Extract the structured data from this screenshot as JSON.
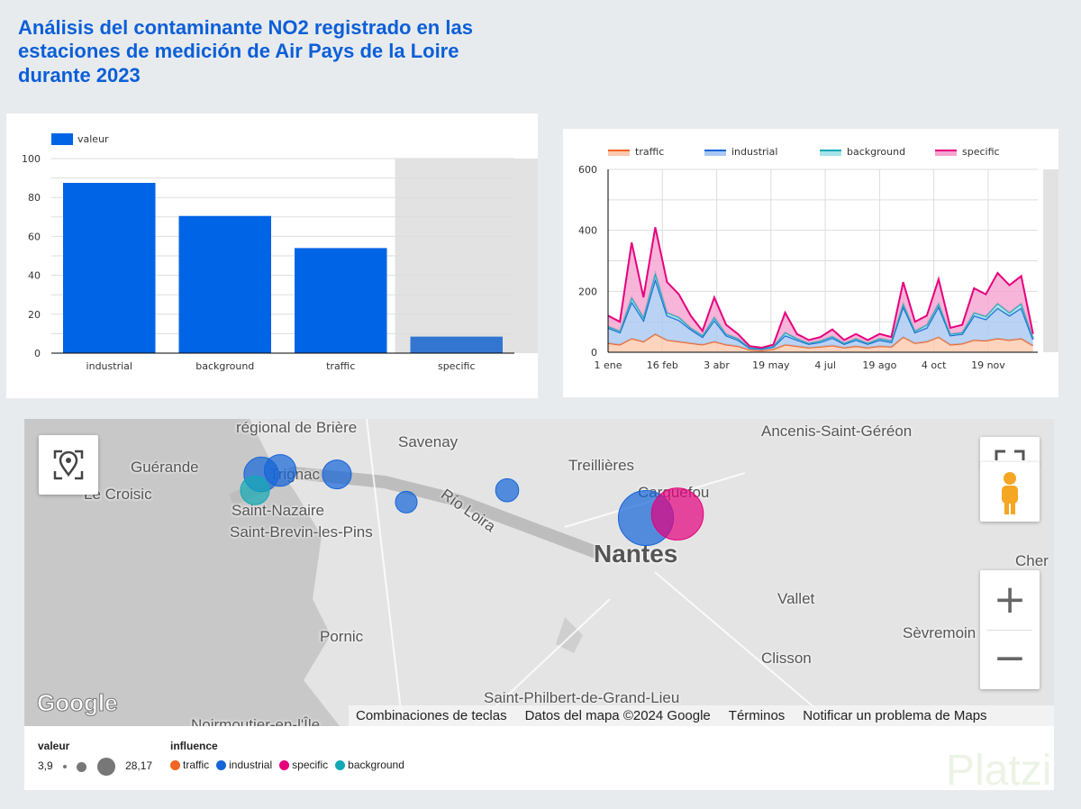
{
  "title": "Análisis del contaminante NO2 registrado en las estaciones de medición de Air Pays de la Loire durante 2023",
  "colors": {
    "bar": "#0064e6",
    "bar_highlight": "#3276d2",
    "traffic": "#f26522",
    "industrial": "#1565d8",
    "background": "#12a9b5",
    "specific": "#e6007e"
  },
  "chart_data": [
    {
      "type": "bar",
      "legend": [
        "valeur"
      ],
      "categories": [
        "industrial",
        "background",
        "traffic",
        "specific"
      ],
      "values": [
        87.5,
        70.5,
        54,
        8.5
      ],
      "ylim": [
        0,
        100
      ],
      "yticks": [
        "0",
        "20",
        "40",
        "60",
        "80",
        "100"
      ],
      "grid": true,
      "legend_placement": "top-left",
      "highlighted_category": "specific"
    },
    {
      "type": "area",
      "stacked": true,
      "legend_placement": "top",
      "grid": true,
      "ylim": [
        0,
        600
      ],
      "yticks": [
        "0",
        "200",
        "400",
        "600"
      ],
      "xticks": [
        {
          "date": "2023-01-01",
          "label": "1 ene"
        },
        {
          "date": "2023-02-16",
          "label": "16 feb"
        },
        {
          "date": "2023-04-03",
          "label": "3 abr"
        },
        {
          "date": "2023-05-19",
          "label": "19 may"
        },
        {
          "date": "2023-07-04",
          "label": "4 jul"
        },
        {
          "date": "2023-08-19",
          "label": "19 ago"
        },
        {
          "date": "2023-10-04",
          "label": "4 oct"
        },
        {
          "date": "2023-11-19",
          "label": "19 nov"
        }
      ],
      "x": [
        "2023-01-01",
        "2023-01-11",
        "2023-01-21",
        "2023-01-31",
        "2023-02-10",
        "2023-02-20",
        "2023-03-02",
        "2023-03-12",
        "2023-03-22",
        "2023-04-01",
        "2023-04-11",
        "2023-04-21",
        "2023-05-01",
        "2023-05-11",
        "2023-05-21",
        "2023-05-31",
        "2023-06-10",
        "2023-06-20",
        "2023-06-30",
        "2023-07-10",
        "2023-07-20",
        "2023-07-30",
        "2023-08-09",
        "2023-08-19",
        "2023-08-29",
        "2023-09-08",
        "2023-09-18",
        "2023-09-28",
        "2023-10-08",
        "2023-10-18",
        "2023-10-28",
        "2023-11-07",
        "2023-11-17",
        "2023-11-27",
        "2023-12-07",
        "2023-12-17",
        "2023-12-27"
      ],
      "series": [
        {
          "name": "traffic",
          "values": [
            30,
            25,
            45,
            35,
            60,
            40,
            35,
            30,
            25,
            35,
            25,
            20,
            8,
            6,
            10,
            25,
            20,
            15,
            18,
            22,
            15,
            20,
            15,
            20,
            18,
            50,
            30,
            35,
            50,
            25,
            28,
            40,
            38,
            45,
            40,
            45,
            22
          ]
        },
        {
          "name": "industrial",
          "values": [
            50,
            40,
            120,
            70,
            180,
            80,
            70,
            45,
            25,
            70,
            30,
            20,
            6,
            5,
            8,
            30,
            20,
            12,
            15,
            25,
            12,
            20,
            12,
            20,
            15,
            100,
            35,
            45,
            100,
            30,
            32,
            80,
            70,
            100,
            80,
            100,
            20
          ]
        },
        {
          "name": "background",
          "values": [
            5,
            5,
            15,
            10,
            20,
            10,
            10,
            5,
            5,
            10,
            5,
            5,
            2,
            2,
            2,
            10,
            5,
            3,
            5,
            5,
            3,
            5,
            3,
            5,
            5,
            10,
            5,
            10,
            10,
            5,
            5,
            10,
            10,
            15,
            10,
            15,
            5
          ]
        },
        {
          "name": "specific",
          "values": [
            35,
            30,
            180,
            65,
            150,
            100,
            75,
            40,
            15,
            65,
            30,
            15,
            4,
            2,
            5,
            65,
            15,
            10,
            12,
            23,
            10,
            15,
            10,
            15,
            12,
            70,
            30,
            30,
            80,
            20,
            25,
            80,
            72,
            100,
            90,
            90,
            13
          ]
        }
      ]
    }
  ],
  "map": {
    "labels": [
      "régional de Brière",
      "Savenay",
      "Ancenis-Saint-Géréon",
      "Guérande",
      "Trignac",
      "Treillières",
      "Le Croisic",
      "Carquefou",
      "Saint-Nazaire",
      "Saint-Brevin-les-Pins",
      "Río Loira",
      "Nantes",
      "Cher",
      "Vallet",
      "Pornic",
      "Sèvremoin",
      "Clisson",
      "Saint-Philbert-de-Grand-Lieu",
      "Noirmoutier-en-l'Île"
    ],
    "google_logo": "Google",
    "footer": [
      "Combinaciones de teclas",
      "Datos del mapa ©2024 Google",
      "Términos",
      "Notificar un problema de Maps"
    ],
    "zoom_in": "+",
    "zoom_out": "−",
    "bubbles": [
      {
        "influence": "industrial",
        "lat": 47.31,
        "lon": -2.21,
        "valeur": 14
      },
      {
        "influence": "industrial",
        "lat": 47.32,
        "lon": -2.18,
        "valeur": 12
      },
      {
        "influence": "industrial",
        "lat": 47.31,
        "lon": -2.09,
        "valeur": 10
      },
      {
        "influence": "background",
        "lat": 47.27,
        "lon": -2.22,
        "valeur": 10
      },
      {
        "influence": "industrial",
        "lat": 47.27,
        "lon": -1.82,
        "valeur": 6
      },
      {
        "influence": "industrial",
        "lat": 47.24,
        "lon": -1.98,
        "valeur": 5
      },
      {
        "influence": "industrial",
        "lat": 47.2,
        "lon": -1.6,
        "valeur": 28.17
      },
      {
        "influence": "specific",
        "lat": 47.21,
        "lon": -1.55,
        "valeur": 26
      }
    ]
  },
  "map_legend": {
    "size_title": "valeur",
    "min": "3,9",
    "max": "28,17",
    "color_title": "influence",
    "items": [
      "traffic",
      "industrial",
      "specific",
      "background"
    ]
  },
  "watermark": "Platzi"
}
